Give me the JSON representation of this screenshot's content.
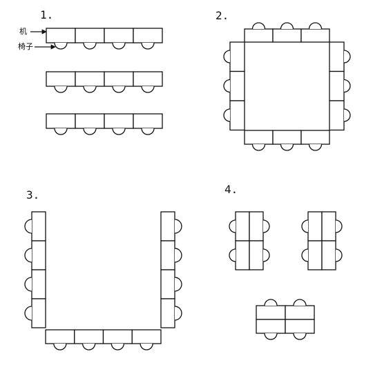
{
  "labels": {
    "sec1": "1.",
    "sec2": "2.",
    "sec3": "3.",
    "sec4": "4.",
    "desk": "机",
    "chair": "椅子"
  },
  "colors": {
    "stroke": "#111111",
    "fill": "#ffffff"
  }
}
